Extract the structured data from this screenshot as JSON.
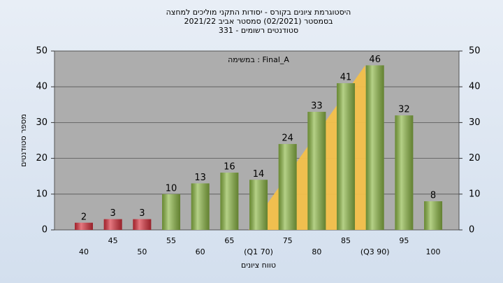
{
  "chart_data": {
    "type": "bar",
    "title": [
      "היסטוגרמת ציונים בקורס - יסודות התקני מוליכים למחצה",
      "בסמסטר  (02/2021)  סמסטר אביב 2021/22",
      "סטודנטים רשומים - 331"
    ],
    "annotation": "במשימה : Final_A",
    "x_label": "טווח ציונים",
    "y_label": "מספר סטודנטים",
    "categories": [
      "40",
      "45",
      "50",
      "55",
      "60",
      "65",
      "(Q1 70)",
      "75",
      "80",
      "85",
      "(Q3 90)",
      "95",
      "100"
    ],
    "values": [
      2,
      3,
      3,
      10,
      13,
      16,
      14,
      24,
      33,
      41,
      46,
      32,
      8
    ],
    "colors": [
      "#d8303c",
      "#d8303c",
      "#d8303c",
      "#8db846",
      "#8db846",
      "#8db846",
      "#8db846",
      "#8db846",
      "#8db846",
      "#8db846",
      "#8db846",
      "#8db846",
      "#8db846"
    ],
    "ylim": [
      0,
      50
    ],
    "yticks": [
      0,
      10,
      20,
      30,
      40,
      50
    ],
    "grid": true
  }
}
